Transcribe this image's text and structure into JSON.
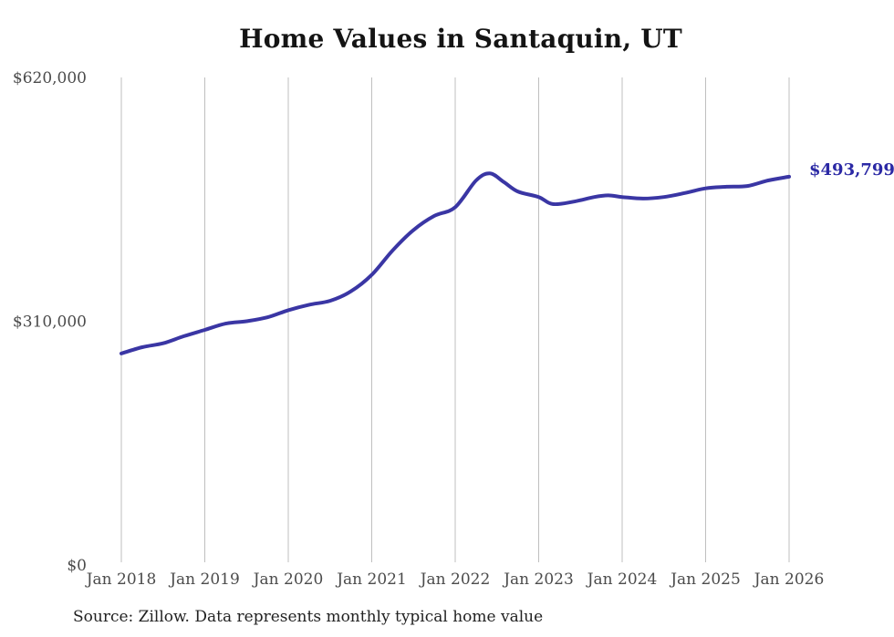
{
  "page": {
    "background": "#ffffff"
  },
  "chart": {
    "title": "Home Values in Santaquin, UT",
    "source_note": "Source: Zillow. Data represents monthly typical home value",
    "end_label": "$493,799"
  },
  "chart_data": {
    "type": "line",
    "title": "Home Values in Santaquin, UT",
    "series_name": "Monthly typical home value",
    "x_tick_labels": [
      "Jan 2018",
      "Jan 2019",
      "Jan 2020",
      "Jan 2021",
      "Jan 2022",
      "Jan 2023",
      "Jan 2024",
      "Jan 2025",
      "Jan 2026"
    ],
    "y_ticks": [
      {
        "label": "$0",
        "value": 0
      },
      {
        "label": "$310,000",
        "value": 310000
      },
      {
        "label": "$620,000",
        "value": 620000
      }
    ],
    "ylim": [
      0,
      620000
    ],
    "x_range_months": [
      0,
      96
    ],
    "x_months_since_jan_2018": [
      0,
      3,
      6,
      9,
      12,
      15,
      18,
      21,
      24,
      27,
      30,
      33,
      36,
      39,
      42,
      45,
      48,
      51,
      53,
      55,
      57,
      60,
      62,
      65,
      68,
      70,
      72,
      75,
      78,
      81,
      84,
      87,
      90,
      93,
      96
    ],
    "values": [
      269000,
      277000,
      282000,
      291000,
      299000,
      307000,
      310000,
      315000,
      324000,
      331000,
      336000,
      348000,
      369000,
      400000,
      426000,
      444000,
      455000,
      489000,
      498000,
      487000,
      475000,
      468000,
      459000,
      462000,
      468000,
      470000,
      468000,
      466000,
      468000,
      473000,
      479000,
      481000,
      482000,
      489000,
      493799
    ],
    "annotation": "$493,799",
    "last_value": 493799,
    "legend": "none",
    "grid": "vertical-only",
    "colors": {
      "line": "#3a36a4",
      "annotation": "#2b29a5",
      "grid": "#bfbfbf",
      "axis_text": "#4b4b4b",
      "title": "#141414",
      "source": "#222222"
    }
  }
}
